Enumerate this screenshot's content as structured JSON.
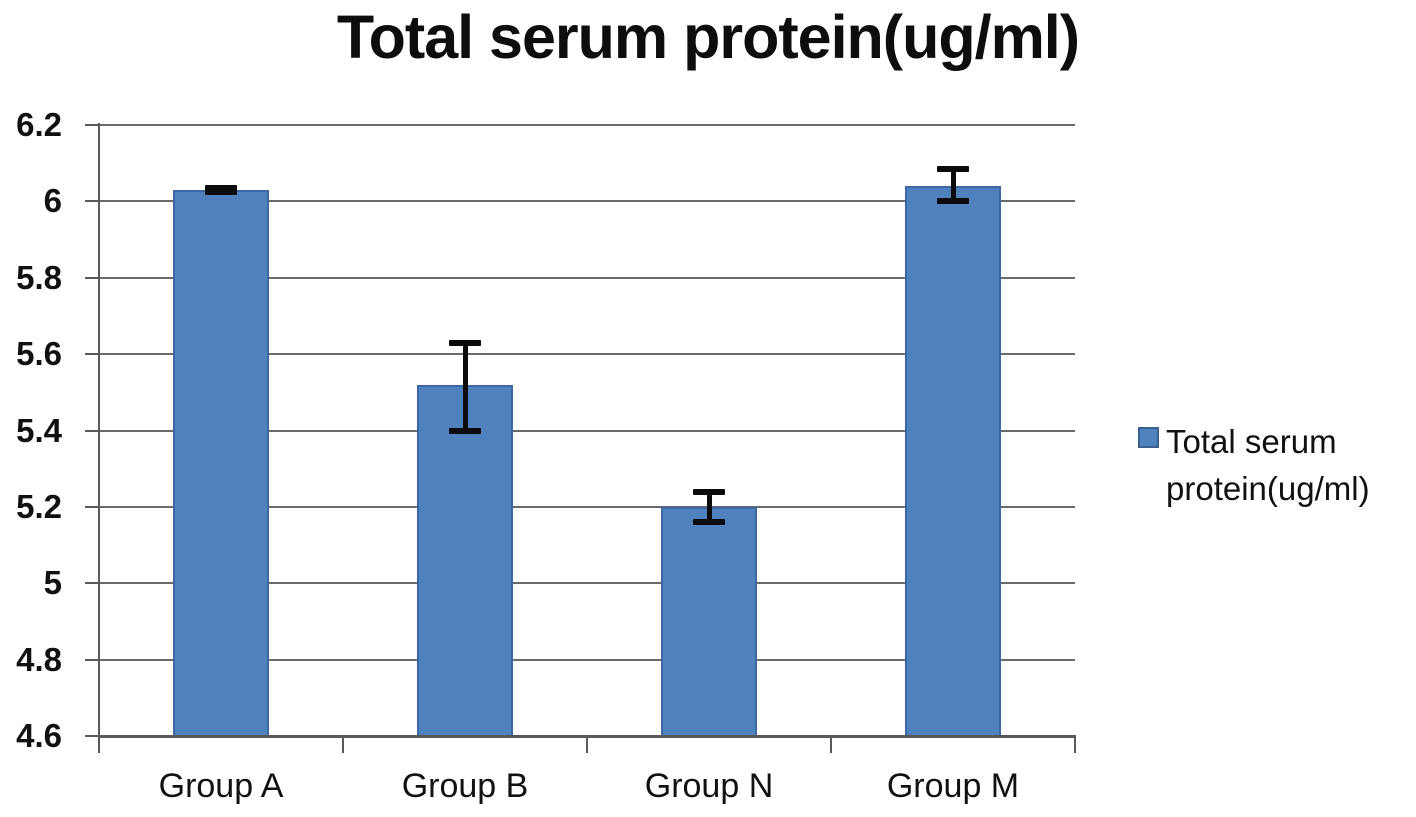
{
  "chart_data": {
    "type": "bar",
    "title": "Total serum protein(ug/ml)",
    "categories": [
      "Group A",
      "Group B",
      "Group N",
      "Group M"
    ],
    "series": [
      {
        "name": "Total serum protein(ug/ml)",
        "values": [
          6.03,
          5.52,
          5.2,
          6.04
        ],
        "error_plus": [
          0.005,
          0.11,
          0.04,
          0.045
        ],
        "error_minus": [
          0.005,
          0.12,
          0.04,
          0.04
        ]
      }
    ],
    "xlabel": "",
    "ylabel": "",
    "ylim": [
      4.6,
      6.2
    ],
    "ytick_labels": [
      "6.2",
      "6",
      "5.8",
      "5.6",
      "5.4",
      "5.2",
      "5",
      "4.8",
      "4.6"
    ],
    "grid": true,
    "legend_position": "right",
    "legend_label": "Total serum protein(ug/ml)"
  },
  "colors": {
    "bar_fill": "#4f81bd",
    "bar_border": "#3c69a5",
    "grid": "#6a6a6a",
    "axis": "#595959",
    "error_bar": "#0b0b0b",
    "text": "#111111"
  }
}
